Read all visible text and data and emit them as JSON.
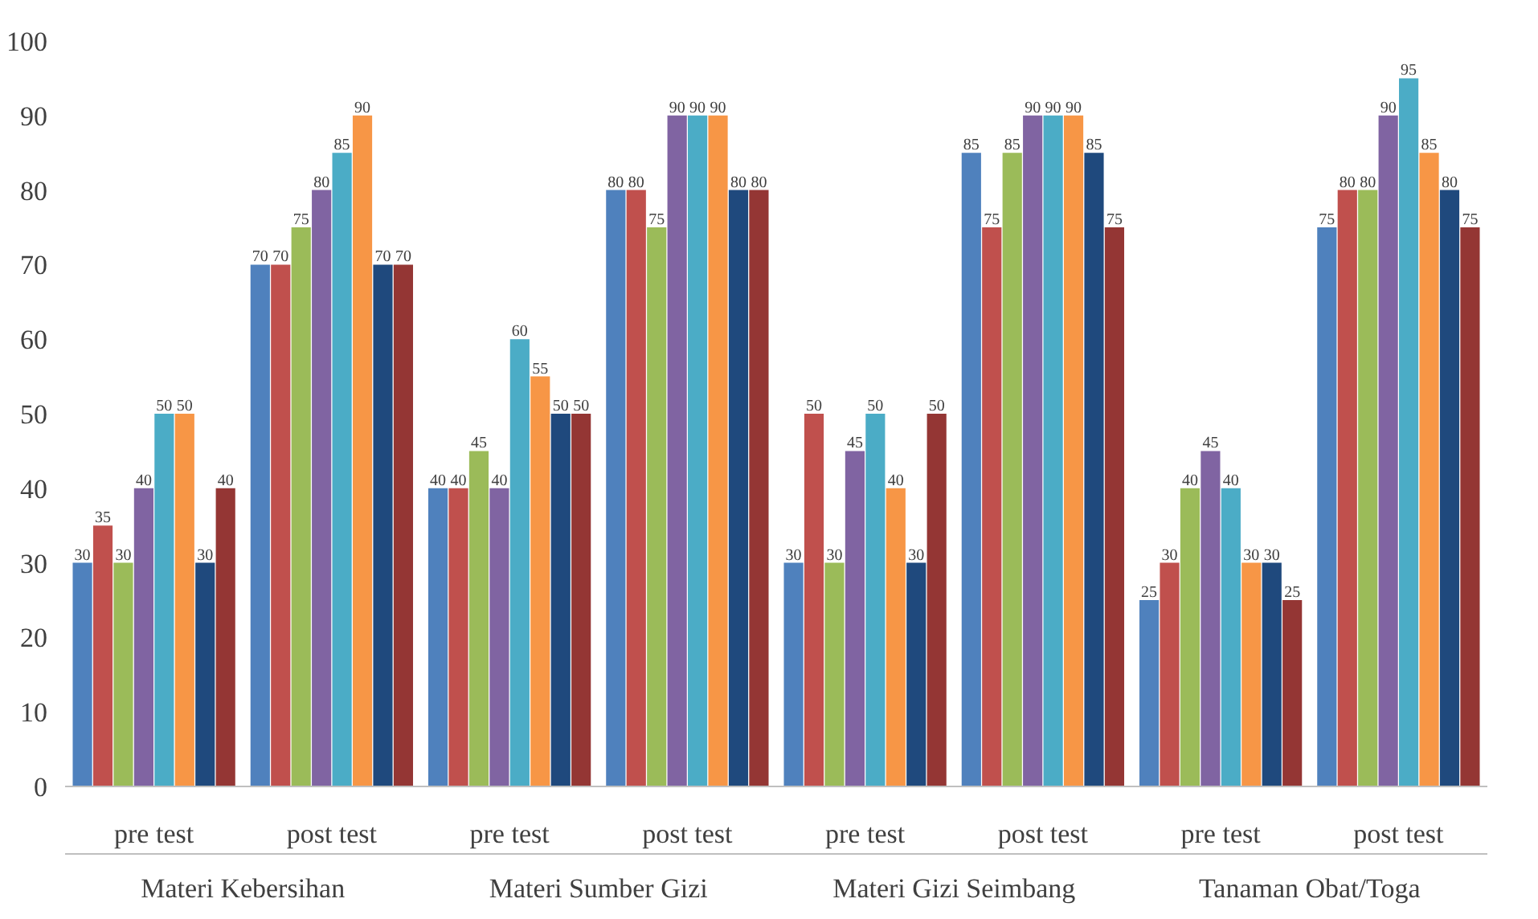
{
  "chart_data": {
    "type": "bar",
    "categories": [
      "pre test",
      "post test",
      "pre test",
      "post test",
      "pre test",
      "post test",
      "pre test",
      "post test"
    ],
    "series": [
      {
        "color": "#4f81bd",
        "values": [
          30,
          70,
          40,
          80,
          30,
          85,
          25,
          75
        ]
      },
      {
        "color": "#c0504d",
        "values": [
          35,
          70,
          40,
          80,
          50,
          75,
          30,
          80
        ]
      },
      {
        "color": "#9bbb59",
        "values": [
          30,
          75,
          45,
          75,
          30,
          85,
          40,
          80
        ]
      },
      {
        "color": "#8064a2",
        "values": [
          40,
          80,
          40,
          90,
          45,
          90,
          45,
          90
        ]
      },
      {
        "color": "#4bacc6",
        "values": [
          50,
          85,
          60,
          90,
          50,
          90,
          40,
          95
        ]
      },
      {
        "color": "#f79646",
        "values": [
          50,
          90,
          55,
          90,
          40,
          90,
          30,
          85
        ]
      },
      {
        "color": "#1f497d",
        "values": [
          30,
          70,
          50,
          80,
          30,
          85,
          30,
          80
        ]
      },
      {
        "color": "#943634",
        "values": [
          40,
          70,
          50,
          80,
          50,
          75,
          25,
          75
        ]
      }
    ],
    "annotations": [
      "Materi Kebersihan",
      "Materi Sumber Gizi",
      "Materi Gizi Seimbang",
      "Tanaman Obat/Toga"
    ],
    "ylim": [
      0,
      100
    ],
    "yticks": [
      0,
      10,
      20,
      30,
      40,
      50,
      60,
      70,
      80,
      90,
      100
    ],
    "data_labels": true,
    "grid": false
  }
}
